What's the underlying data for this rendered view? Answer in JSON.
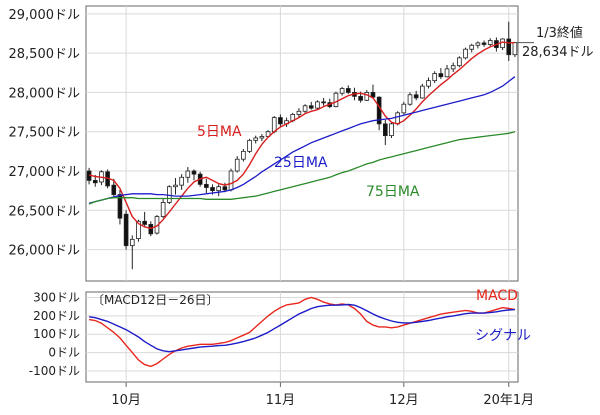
{
  "chart_data": [
    {
      "type": "candlestick",
      "title": "",
      "y_ticks": [
        {
          "value": 26000,
          "label": "26,000ドル"
        },
        {
          "value": 26500,
          "label": "26,500ドル"
        },
        {
          "value": 27000,
          "label": "27,000ドル"
        },
        {
          "value": 27500,
          "label": "27,500ドル"
        },
        {
          "value": 28000,
          "label": "28,000ドル"
        },
        {
          "value": 28500,
          "label": "28,500ドル"
        },
        {
          "value": 29000,
          "label": "29,000ドル"
        }
      ],
      "ylim": [
        25600,
        29100
      ],
      "grid": true,
      "candles": [
        [
          27000,
          27040,
          26830,
          26880
        ],
        [
          26880,
          26950,
          26800,
          26850
        ],
        [
          26860,
          27010,
          26820,
          26990
        ],
        [
          26990,
          27020,
          26780,
          26810
        ],
        [
          26820,
          26900,
          26680,
          26700
        ],
        [
          26700,
          26760,
          26320,
          26400
        ],
        [
          26450,
          26500,
          26000,
          26050
        ],
        [
          26050,
          26180,
          25750,
          26130
        ],
        [
          26140,
          26380,
          26100,
          26360
        ],
        [
          26360,
          26480,
          26280,
          26320
        ],
        [
          26320,
          26360,
          26170,
          26200
        ],
        [
          26210,
          26440,
          26190,
          26420
        ],
        [
          26420,
          26650,
          26400,
          26600
        ],
        [
          26600,
          26820,
          26580,
          26800
        ],
        [
          26800,
          26910,
          26700,
          26820
        ],
        [
          26820,
          26960,
          26760,
          26920
        ],
        [
          26920,
          27050,
          26850,
          27000
        ],
        [
          27000,
          27020,
          26880,
          26960
        ],
        [
          26960,
          26990,
          26800,
          26830
        ],
        [
          26830,
          26900,
          26720,
          26790
        ],
        [
          26790,
          26830,
          26700,
          26750
        ],
        [
          26750,
          26830,
          26680,
          26800
        ],
        [
          26800,
          26850,
          26730,
          26760
        ],
        [
          26760,
          27030,
          26740,
          27000
        ],
        [
          27000,
          27190,
          26980,
          27150
        ],
        [
          27150,
          27280,
          27120,
          27250
        ],
        [
          27250,
          27410,
          27230,
          27390
        ],
        [
          27390,
          27450,
          27350,
          27420
        ],
        [
          27420,
          27470,
          27380,
          27440
        ],
        [
          27440,
          27520,
          27420,
          27500
        ],
        [
          27500,
          27700,
          27480,
          27680
        ],
        [
          27680,
          27720,
          27560,
          27600
        ],
        [
          27600,
          27680,
          27560,
          27640
        ],
        [
          27640,
          27740,
          27620,
          27720
        ],
        [
          27720,
          27800,
          27680,
          27760
        ],
        [
          27760,
          27850,
          27740,
          27830
        ],
        [
          27830,
          27880,
          27780,
          27800
        ],
        [
          27800,
          27900,
          27780,
          27880
        ],
        [
          27880,
          27930,
          27830,
          27870
        ],
        [
          27870,
          27920,
          27800,
          27820
        ],
        [
          27820,
          28010,
          27810,
          27990
        ],
        [
          27990,
          28070,
          27960,
          28050
        ],
        [
          28050,
          28090,
          27980,
          28000
        ],
        [
          28000,
          28060,
          27900,
          27950
        ],
        [
          27950,
          28010,
          27870,
          27900
        ],
        [
          27900,
          28030,
          27890,
          28000
        ],
        [
          28000,
          28100,
          27920,
          27940
        ],
        [
          27940,
          27950,
          27520,
          27600
        ],
        [
          27600,
          27650,
          27330,
          27450
        ],
        [
          27450,
          27620,
          27420,
          27600
        ],
        [
          27600,
          27760,
          27580,
          27740
        ],
        [
          27740,
          27880,
          27720,
          27850
        ],
        [
          27850,
          28000,
          27830,
          27970
        ],
        [
          27970,
          28020,
          27900,
          27930
        ],
        [
          27930,
          28110,
          27920,
          28080
        ],
        [
          28080,
          28190,
          28050,
          28150
        ],
        [
          28150,
          28270,
          28120,
          28240
        ],
        [
          28240,
          28310,
          28170,
          28200
        ],
        [
          28200,
          28350,
          28190,
          28300
        ],
        [
          28300,
          28380,
          28260,
          28340
        ],
        [
          28340,
          28460,
          28320,
          28440
        ],
        [
          28440,
          28570,
          28420,
          28550
        ],
        [
          28550,
          28620,
          28510,
          28600
        ],
        [
          28600,
          28650,
          28560,
          28630
        ],
        [
          28630,
          28660,
          28580,
          28610
        ],
        [
          28610,
          28690,
          28590,
          28660
        ],
        [
          28660,
          28700,
          28520,
          28570
        ],
        [
          28570,
          28690,
          28540,
          28680
        ],
        [
          28680,
          28900,
          28400,
          28480
        ],
        [
          28480,
          28640,
          28450,
          28634
        ]
      ],
      "series": [
        {
          "name": "5日MA",
          "color": "#d81e1e",
          "values": [
            26950,
            26930,
            26920,
            26910,
            26880,
            26780,
            26600,
            26420,
            26330,
            26290,
            26270,
            26300,
            26380,
            26480,
            26580,
            26680,
            26780,
            26860,
            26900,
            26920,
            26880,
            26840,
            26820,
            26840,
            26880,
            26960,
            27080,
            27220,
            27340,
            27430,
            27500,
            27560,
            27600,
            27640,
            27680,
            27730,
            27760,
            27780,
            27820,
            27850,
            27880,
            27920,
            27960,
            27980,
            27990,
            27970,
            27930,
            27820,
            27700,
            27620,
            27600,
            27640,
            27710,
            27790,
            27880,
            27960,
            28030,
            28100,
            28160,
            28230,
            28290,
            28360,
            28430,
            28490,
            28540,
            28580,
            28610,
            28640,
            28630,
            28634
          ]
        },
        {
          "name": "25日MA",
          "color": "#1c1cc8",
          "values": [
            26590,
            26610,
            26630,
            26650,
            26670,
            26690,
            26700,
            26710,
            26710,
            26710,
            26710,
            26700,
            26700,
            26690,
            26680,
            26680,
            26680,
            26690,
            26700,
            26710,
            26720,
            26730,
            26740,
            26760,
            26790,
            26830,
            26880,
            26930,
            26990,
            27040,
            27090,
            27140,
            27190,
            27240,
            27280,
            27320,
            27360,
            27390,
            27420,
            27450,
            27480,
            27510,
            27540,
            27570,
            27600,
            27620,
            27640,
            27650,
            27660,
            27670,
            27690,
            27710,
            27730,
            27750,
            27770,
            27790,
            27810,
            27830,
            27850,
            27870,
            27890,
            27910,
            27930,
            27950,
            27970,
            28000,
            28040,
            28080,
            28140,
            28200
          ]
        },
        {
          "name": "75日MA",
          "color": "#2a8a2a",
          "values": [
            26580,
            26610,
            26630,
            26650,
            26660,
            26660,
            26660,
            26660,
            26650,
            26650,
            26650,
            26650,
            26650,
            26650,
            26650,
            26650,
            26650,
            26650,
            26650,
            26640,
            26640,
            26640,
            26640,
            26640,
            26650,
            26660,
            26670,
            26680,
            26700,
            26720,
            26740,
            26760,
            26780,
            26800,
            26820,
            26840,
            26860,
            26880,
            26900,
            26920,
            26950,
            26980,
            27000,
            27030,
            27060,
            27090,
            27110,
            27140,
            27160,
            27180,
            27200,
            27220,
            27240,
            27260,
            27280,
            27300,
            27320,
            27340,
            27360,
            27380,
            27400,
            27410,
            27420,
            27430,
            27440,
            27450,
            27460,
            27470,
            27480,
            27500
          ]
        }
      ],
      "labels": {
        "ma5": "5日MA",
        "ma25": "25日MA",
        "ma75": "75日MA",
        "last_label": "1/3終値",
        "last_value_label": "28,634ドル"
      },
      "last_value": 28634
    },
    {
      "type": "line",
      "title": "〔MACD12日－26日〕",
      "y_ticks": [
        {
          "value": 300,
          "label": "300ドル"
        },
        {
          "value": 200,
          "label": "200ドル"
        },
        {
          "value": 100,
          "label": "100ドル"
        },
        {
          "value": 0,
          "label": "0ドル"
        },
        {
          "value": -100,
          "label": "-100ドル"
        }
      ],
      "ylim": [
        -160,
        330
      ],
      "series": [
        {
          "name": "MACD",
          "color": "#e8271d",
          "values": [
            180,
            175,
            160,
            135,
            110,
            80,
            40,
            0,
            -40,
            -65,
            -75,
            -60,
            -35,
            -10,
            10,
            25,
            35,
            40,
            45,
            45,
            45,
            50,
            55,
            65,
            80,
            95,
            110,
            140,
            170,
            200,
            225,
            245,
            260,
            265,
            270,
            290,
            300,
            290,
            275,
            265,
            260,
            265,
            260,
            240,
            210,
            170,
            150,
            140,
            140,
            135,
            140,
            150,
            160,
            170,
            180,
            190,
            200,
            210,
            215,
            220,
            225,
            230,
            225,
            215,
            215,
            225,
            235,
            245,
            240,
            235
          ]
        },
        {
          "name": "シグナル",
          "color": "#1c1cc8",
          "values": [
            195,
            190,
            180,
            170,
            155,
            140,
            125,
            105,
            85,
            60,
            40,
            20,
            10,
            5,
            10,
            15,
            20,
            25,
            30,
            33,
            35,
            38,
            40,
            45,
            52,
            60,
            70,
            80,
            95,
            110,
            130,
            150,
            170,
            190,
            210,
            225,
            240,
            250,
            255,
            258,
            258,
            260,
            262,
            258,
            245,
            228,
            210,
            195,
            183,
            172,
            165,
            162,
            162,
            165,
            170,
            175,
            182,
            188,
            195,
            200,
            206,
            212,
            215,
            215,
            215,
            218,
            222,
            228,
            232,
            234
          ]
        }
      ],
      "labels": {
        "macd": "MACD",
        "signal": "シグナル"
      }
    }
  ],
  "x_axis": {
    "ticks": [
      {
        "index": 6,
        "label": "10月"
      },
      {
        "index": 31,
        "label": "11月"
      },
      {
        "index": 51,
        "label": "12月"
      },
      {
        "index": 68,
        "label": "20年1月"
      }
    ]
  },
  "colors": {
    "up_body": "#ffffff",
    "down_body": "#111111",
    "candle_outline": "#222222",
    "axis": "#666666",
    "grid": "#d9d9d9"
  }
}
